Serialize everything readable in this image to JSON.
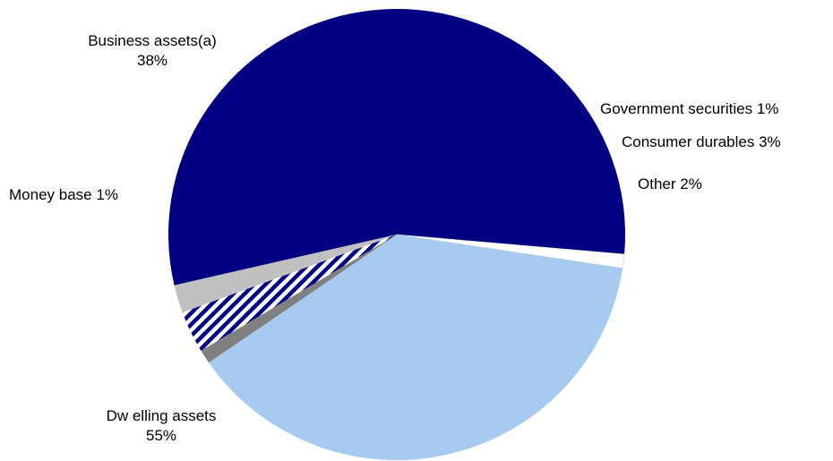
{
  "chart_data": {
    "type": "pie",
    "title": "",
    "slices": [
      {
        "label": "Dw elling assets",
        "value": 55,
        "value_label": "55%",
        "color": "#000080",
        "pattern": "none"
      },
      {
        "label": "Money base",
        "value": 1,
        "value_label": "1%",
        "color": "#ffffff",
        "pattern": "none"
      },
      {
        "label": "Business assets(a)",
        "value": 38,
        "value_label": "38%",
        "color": "#a6caf0",
        "pattern": "none"
      },
      {
        "label": "Government securities",
        "value": 1,
        "value_label": "1%",
        "color": "#808080",
        "pattern": "none"
      },
      {
        "label": "Consumer durables",
        "value": 3,
        "value_label": "3%",
        "color": "#000080",
        "pattern": "diagonal-stripes"
      },
      {
        "label": "Other",
        "value": 2,
        "value_label": "2%",
        "color": "#c0c0c0",
        "pattern": "none"
      }
    ],
    "legend": "none",
    "label_placement": "outside"
  }
}
